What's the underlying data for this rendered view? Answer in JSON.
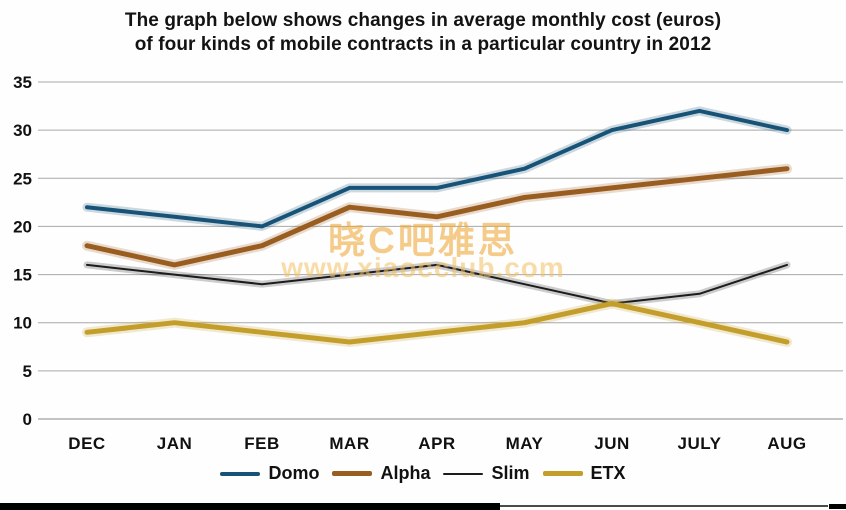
{
  "title": {
    "line1": "The graph below shows changes in average monthly cost (euros)",
    "line2": "of four kinds of mobile contracts in a particular country in 2012"
  },
  "watermark": {
    "line1": "晓C吧雅思",
    "line2": "www.xiaocclub.com"
  },
  "chart_data": {
    "type": "line",
    "title": "The graph below shows changes in average monthly cost (euros) of four kinds of mobile contracts in a particular country in 2012",
    "categories": [
      "DEC",
      "JAN",
      "FEB",
      "MAR",
      "APR",
      "MAY",
      "JUN",
      "JULY",
      "AUG"
    ],
    "series": [
      {
        "name": "Domo",
        "color": "#175377",
        "line_width": 4,
        "values": [
          22,
          21,
          20,
          24,
          24,
          26,
          30,
          32,
          30
        ]
      },
      {
        "name": "Alpha",
        "color": "#9a5d20",
        "line_width": 5,
        "values": [
          18,
          16,
          18,
          22,
          21,
          23,
          24,
          25,
          26
        ]
      },
      {
        "name": "Slim",
        "color": "#1c1c1c",
        "line_width": 2,
        "values": [
          16,
          15,
          14,
          15,
          16,
          14,
          12,
          13,
          16
        ]
      },
      {
        "name": "ETX",
        "color": "#c49e2a",
        "line_width": 5,
        "values": [
          9,
          10,
          9,
          8,
          9,
          10,
          12,
          10,
          8
        ]
      }
    ],
    "xlabel": "",
    "ylabel": "",
    "ylim": [
      0,
      35
    ],
    "yticks": [
      0,
      5,
      10,
      15,
      20,
      25,
      30,
      35
    ],
    "grid": "horizontal",
    "grid_color": "#a8a8a8",
    "axis_label_color": "#111111",
    "legend_position": "bottom"
  }
}
